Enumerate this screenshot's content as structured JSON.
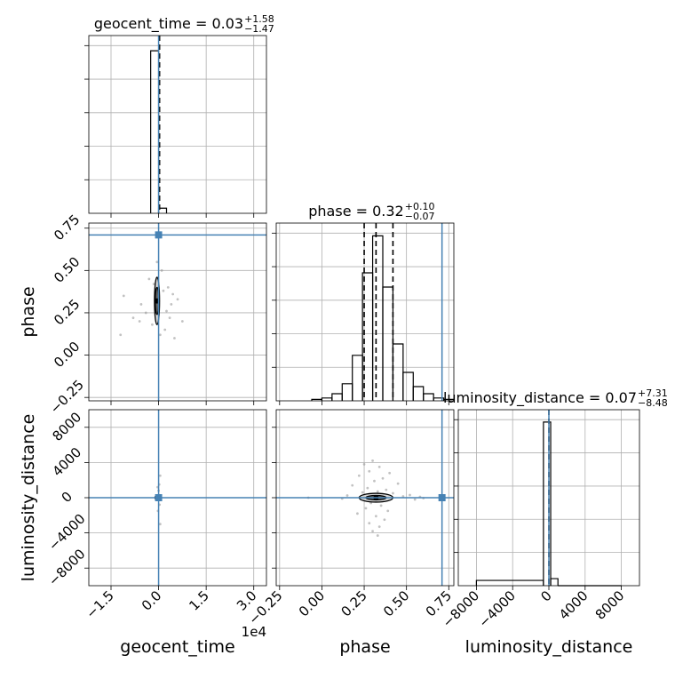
{
  "chart_data": {
    "type": "corner",
    "parameters": [
      "geocent_time",
      "phase",
      "luminosity_distance"
    ],
    "truth_color": "#4682b4",
    "truths": {
      "geocent_time": 0.0,
      "phase": 0.71,
      "luminosity_distance": 0.0
    },
    "titles": [
      {
        "param": "geocent_time",
        "text": "geocent_time = 0.03",
        "sup": "+1.58",
        "sub": "−1.47"
      },
      {
        "param": "phase",
        "text": "phase = 0.32",
        "sup": "+0.10",
        "sub": "−0.07"
      },
      {
        "param": "luminosity_distance",
        "text": "luminosity_distance = 0.07",
        "sup": "+7.31",
        "sub": "−8.48"
      }
    ],
    "axes": {
      "geocent_time": {
        "label": "geocent_time",
        "range": [
          -2.2,
          3.4
        ],
        "ticks": [
          -1.5,
          0.0,
          1.5,
          3.0
        ],
        "tick_labels": [
          "−1.5",
          "0.0",
          "1.5",
          "3.0"
        ],
        "offset_label": "1e4"
      },
      "phase": {
        "label": "phase",
        "range": [
          -0.27,
          0.78
        ],
        "ticks": [
          -0.25,
          0.0,
          0.25,
          0.5,
          0.75
        ],
        "tick_labels": [
          "−0.25",
          "0.00",
          "0.25",
          "0.50",
          "0.75"
        ]
      },
      "luminosity_distance": {
        "label": "luminosity_distance",
        "range": [
          -10000,
          10000
        ],
        "ticks": [
          -8000,
          -4000,
          0,
          4000,
          8000
        ],
        "tick_labels": [
          "−8000",
          "−4000",
          "0",
          "4000",
          "8000"
        ]
      }
    },
    "histograms": {
      "geocent_time": {
        "bins": [
          {
            "x0": -0.25,
            "x1": 0.0,
            "count": 96
          },
          {
            "x0": 0.0,
            "x1": 0.25,
            "count": 3
          }
        ],
        "ymax": 105,
        "quantiles": [
          0.03
        ]
      },
      "phase": {
        "bins": [
          {
            "x0": -0.06,
            "x1": 0.0,
            "count": 1
          },
          {
            "x0": 0.0,
            "x1": 0.06,
            "count": 2
          },
          {
            "x0": 0.06,
            "x1": 0.12,
            "count": 5
          },
          {
            "x0": 0.12,
            "x1": 0.18,
            "count": 12
          },
          {
            "x0": 0.18,
            "x1": 0.24,
            "count": 32
          },
          {
            "x0": 0.24,
            "x1": 0.3,
            "count": 90
          },
          {
            "x0": 0.3,
            "x1": 0.36,
            "count": 116
          },
          {
            "x0": 0.36,
            "x1": 0.42,
            "count": 80
          },
          {
            "x0": 0.42,
            "x1": 0.48,
            "count": 40
          },
          {
            "x0": 0.48,
            "x1": 0.54,
            "count": 20
          },
          {
            "x0": 0.54,
            "x1": 0.6,
            "count": 10
          },
          {
            "x0": 0.6,
            "x1": 0.66,
            "count": 5
          },
          {
            "x0": 0.66,
            "x1": 0.72,
            "count": 2
          },
          {
            "x0": 0.72,
            "x1": 0.78,
            "count": 1
          }
        ],
        "ymax": 125,
        "quantiles": [
          0.25,
          0.32,
          0.42
        ]
      },
      "luminosity_distance": {
        "bins": [
          {
            "x0": -8000,
            "x1": -600,
            "count": 3
          },
          {
            "x0": -600,
            "x1": 200,
            "count": 93
          },
          {
            "x0": 200,
            "x1": 1000,
            "count": 4
          },
          {
            "x0": 1000,
            "x1": 8000,
            "count": 0
          }
        ],
        "ymax": 100,
        "quantiles": [
          0.07
        ]
      }
    },
    "pairs": [
      {
        "x": "geocent_time",
        "y": "phase",
        "center": [
          -0.05,
          0.32
        ],
        "contours": [
          {
            "rx": 0.08,
            "ry": 0.14
          },
          {
            "rx": 0.05,
            "ry": 0.08
          }
        ],
        "points": [
          [
            -1.1,
            0.35
          ],
          [
            -1.2,
            0.12
          ],
          [
            -0.6,
            0.2
          ],
          [
            0.4,
            0.3
          ],
          [
            0.6,
            0.33
          ],
          [
            0.75,
            0.2
          ],
          [
            0.3,
            0.4
          ],
          [
            -0.4,
            0.25
          ],
          [
            0.2,
            0.15
          ],
          [
            -0.3,
            0.45
          ],
          [
            0.1,
            0.5
          ],
          [
            -0.8,
            0.22
          ],
          [
            0.5,
            0.1
          ],
          [
            0.15,
            0.38
          ],
          [
            -0.2,
            0.18
          ],
          [
            0.25,
            0.26
          ],
          [
            -0.15,
            0.42
          ],
          [
            0.35,
            0.22
          ],
          [
            0.05,
            0.12
          ],
          [
            -0.05,
            0.55
          ],
          [
            0.45,
            0.36
          ],
          [
            -0.55,
            0.3
          ]
        ]
      },
      {
        "x": "geocent_time",
        "y": "luminosity_distance",
        "center": [
          -0.05,
          0
        ],
        "contours": [
          {
            "rx": 0.05,
            "ry": 200
          }
        ],
        "points": [
          [
            0.05,
            2500
          ],
          [
            0.02,
            1500
          ],
          [
            -0.02,
            -1500
          ],
          [
            0.05,
            -3000
          ],
          [
            0.0,
            800
          ],
          [
            0.03,
            -800
          ],
          [
            -0.03,
            1200
          ]
        ]
      },
      {
        "x": "phase",
        "y": "luminosity_distance",
        "center": [
          0.32,
          0
        ],
        "contours": [
          {
            "rx": 0.1,
            "ry": 500
          },
          {
            "rx": 0.06,
            "ry": 250
          }
        ],
        "points": [
          [
            0.3,
            4200
          ],
          [
            0.25,
            3800
          ],
          [
            0.34,
            3500
          ],
          [
            0.28,
            3000
          ],
          [
            0.4,
            2800
          ],
          [
            0.22,
            2500
          ],
          [
            0.36,
            2200
          ],
          [
            0.31,
            1900
          ],
          [
            0.45,
            1600
          ],
          [
            0.18,
            1400
          ],
          [
            0.27,
            1100
          ],
          [
            0.38,
            900
          ],
          [
            0.33,
            700
          ],
          [
            0.24,
            600
          ],
          [
            0.42,
            500
          ],
          [
            0.29,
            -600
          ],
          [
            0.35,
            -900
          ],
          [
            0.26,
            -1200
          ],
          [
            0.39,
            -1500
          ],
          [
            0.21,
            -1800
          ],
          [
            0.32,
            -2100
          ],
          [
            0.37,
            -2500
          ],
          [
            0.28,
            -2900
          ],
          [
            0.34,
            -3300
          ],
          [
            0.3,
            -3800
          ],
          [
            0.33,
            -4300
          ],
          [
            0.52,
            300
          ],
          [
            0.55,
            -200
          ],
          [
            0.48,
            150
          ],
          [
            0.12,
            -100
          ],
          [
            0.15,
            250
          ],
          [
            0.58,
            100
          ],
          [
            -0.08,
            0
          ],
          [
            0.6,
            -50
          ]
        ]
      }
    ]
  }
}
